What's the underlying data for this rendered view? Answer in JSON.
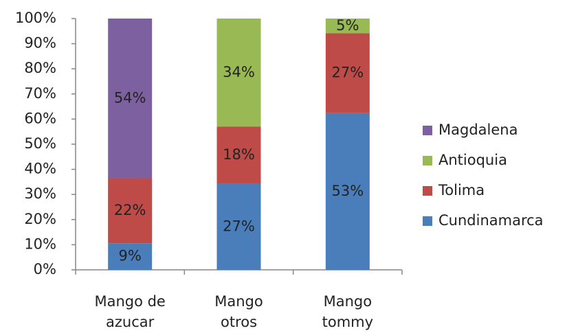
{
  "chart_data": {
    "type": "bar",
    "stacked": "percent",
    "categories": [
      [
        "Mango de",
        "azucar"
      ],
      [
        "Mango",
        "otros"
      ],
      [
        "Mango",
        "tommy"
      ]
    ],
    "series": [
      {
        "name": "Cundinamarca",
        "color": "#4a7ebb",
        "values": [
          9,
          27,
          53
        ],
        "value_labels": [
          "9%",
          "27%",
          "53%"
        ]
      },
      {
        "name": "Tolima",
        "color": "#be4b48",
        "values": [
          22,
          18,
          27
        ],
        "value_labels": [
          "22%",
          "18%",
          "27%"
        ]
      },
      {
        "name": "Antioquia",
        "color": "#98b954",
        "values": [
          null,
          34,
          5
        ],
        "value_labels": [
          null,
          "34%",
          "5%"
        ]
      },
      {
        "name": "Magdalena",
        "color": "#7d60a0",
        "values": [
          54,
          null,
          null
        ],
        "value_labels": [
          "54%",
          null,
          null
        ]
      }
    ],
    "ylim": [
      0,
      100
    ],
    "yticks": [
      {
        "value": 0,
        "label": "0%"
      },
      {
        "value": 10,
        "label": "10%"
      },
      {
        "value": 20,
        "label": "20%"
      },
      {
        "value": 30,
        "label": "30%"
      },
      {
        "value": 40,
        "label": "40%"
      },
      {
        "value": 50,
        "label": "50%"
      },
      {
        "value": 60,
        "label": "60%"
      },
      {
        "value": 70,
        "label": "70%"
      },
      {
        "value": 80,
        "label": "80%"
      },
      {
        "value": 90,
        "label": "90%"
      },
      {
        "value": 100,
        "label": "100%"
      }
    ],
    "legend": "right"
  }
}
